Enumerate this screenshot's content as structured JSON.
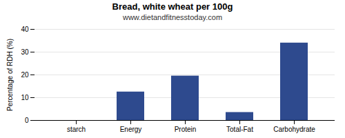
{
  "chart_data": {
    "type": "bar",
    "title": "Bread, white wheat per 100g",
    "subtitle": "www.dietandfitnesstoday.com",
    "ylabel": "Percentage of RDH (%)",
    "categories": [
      "starch",
      "Energy",
      "Protein",
      "Total-Fat",
      "Carbohydrate"
    ],
    "values": [
      0,
      12.5,
      19.5,
      3.5,
      34.0
    ],
    "color": "#2e4a8e",
    "ylim": [
      0,
      40
    ],
    "yticks": [
      0,
      10,
      20,
      30,
      40
    ],
    "grid": true
  }
}
